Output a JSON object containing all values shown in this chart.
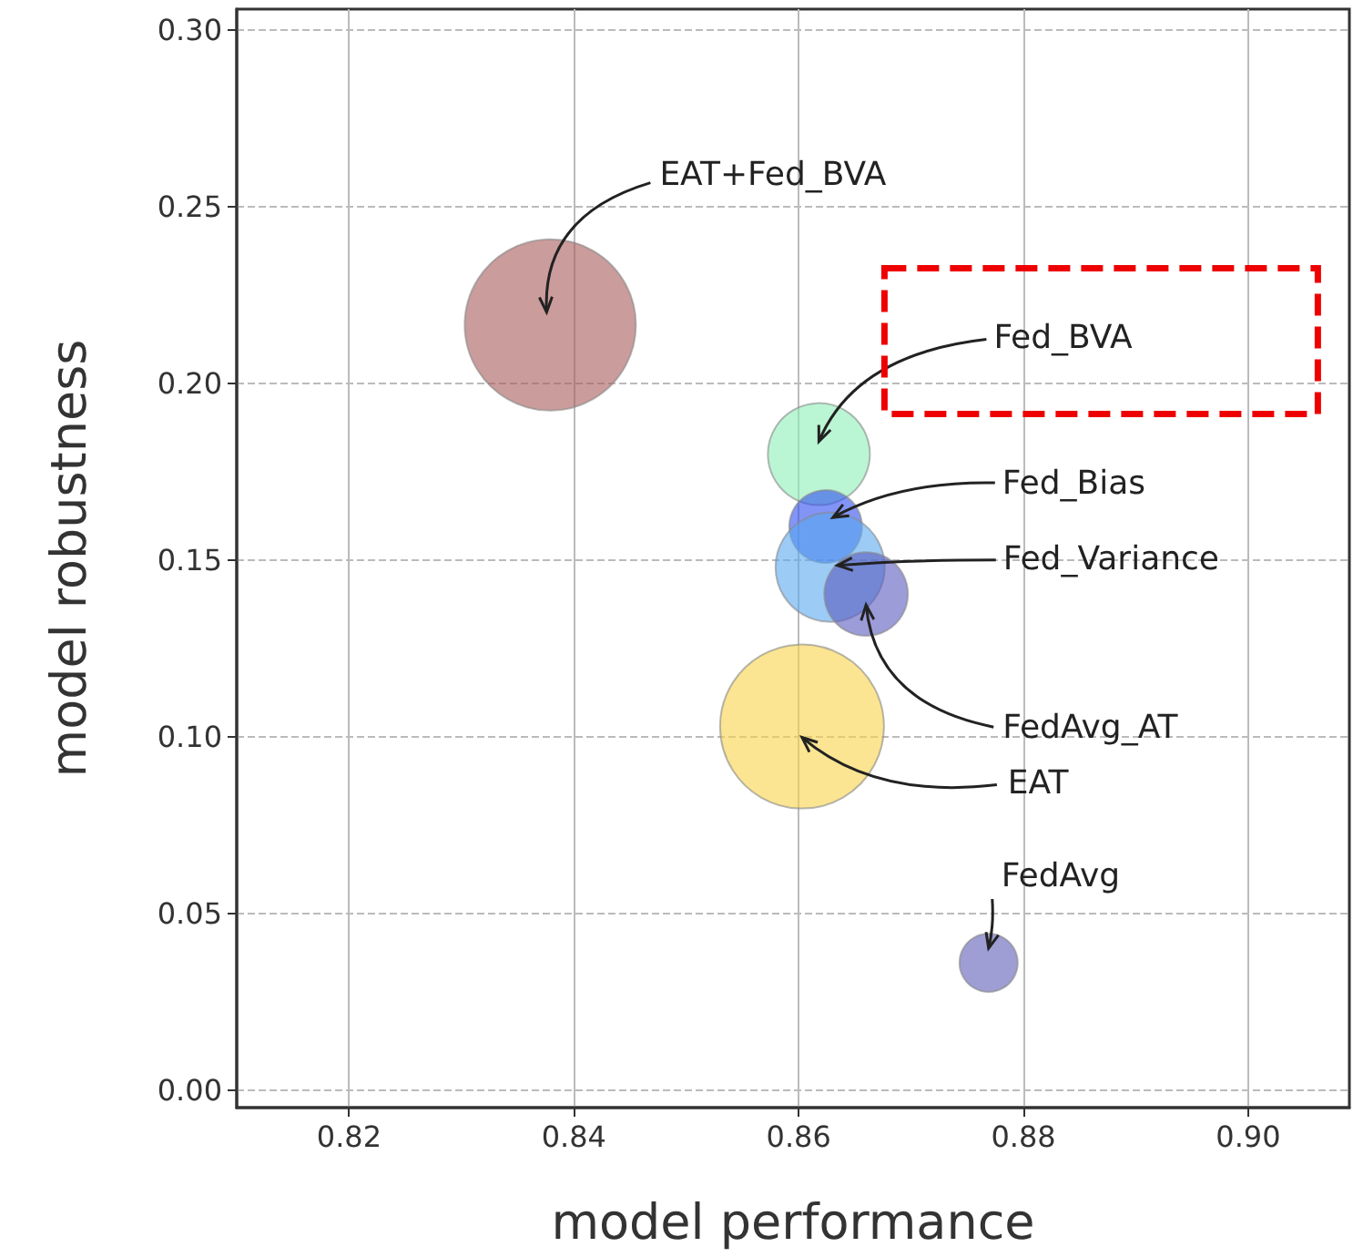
{
  "chart_data": {
    "type": "bubble",
    "xlabel": "model performance",
    "ylabel": "model robustness",
    "xlim": [
      0.81,
      0.909
    ],
    "ylim": [
      -0.005,
      0.306
    ],
    "xticks": [
      0.82,
      0.84,
      0.86,
      0.88,
      {
        "value": 0.9,
        "label": "0.90"
      }
    ],
    "yticks": [
      {
        "value": 0,
        "label": "0.00"
      },
      {
        "value": 0.05,
        "label": "0.05"
      },
      {
        "value": 0.1,
        "label": "0.10"
      },
      {
        "value": 0.15,
        "label": "0.15"
      },
      {
        "value": 0.2,
        "label": "0.20"
      },
      {
        "value": 0.25,
        "label": "0.25"
      },
      {
        "value": 0.3,
        "label": "0.30"
      }
    ],
    "grid": true,
    "legend": false,
    "series": [
      {
        "name": "EAT+Fed_BVA",
        "color": "#a85a5a",
        "x": [
          0.8379
        ],
        "values": [
          0.2166
        ],
        "sizes": [
          1
        ]
      },
      {
        "name": "Fed_BVA",
        "color": "#8df0b8",
        "x": [
          0.8618
        ],
        "values": [
          0.18
        ],
        "sizes": [
          0.355
        ]
      },
      {
        "name": "Fed_Bias",
        "color": "#2f4ff0",
        "x": [
          0.8624
        ],
        "values": [
          0.1595
        ],
        "sizes": [
          0.181
        ]
      },
      {
        "name": "Fed_Variance",
        "color": "#5aa8f0",
        "x": [
          0.8628
        ],
        "values": [
          0.148
        ],
        "sizes": [
          0.407
        ]
      },
      {
        "name": "FedAvg_AT",
        "color": "#5a5ac0",
        "x": [
          0.866
        ],
        "values": [
          0.1404
        ],
        "sizes": [
          0.239
        ]
      },
      {
        "name": "EAT",
        "color": "#f8d34a",
        "x": [
          0.8603
        ],
        "values": [
          0.1029
        ],
        "sizes": [
          0.917
        ]
      },
      {
        "name": "FedAvg",
        "color": "#5e5eb8",
        "x": [
          0.8769
        ],
        "values": [
          0.036
        ],
        "sizes": [
          0.116
        ]
      }
    ]
  }
}
